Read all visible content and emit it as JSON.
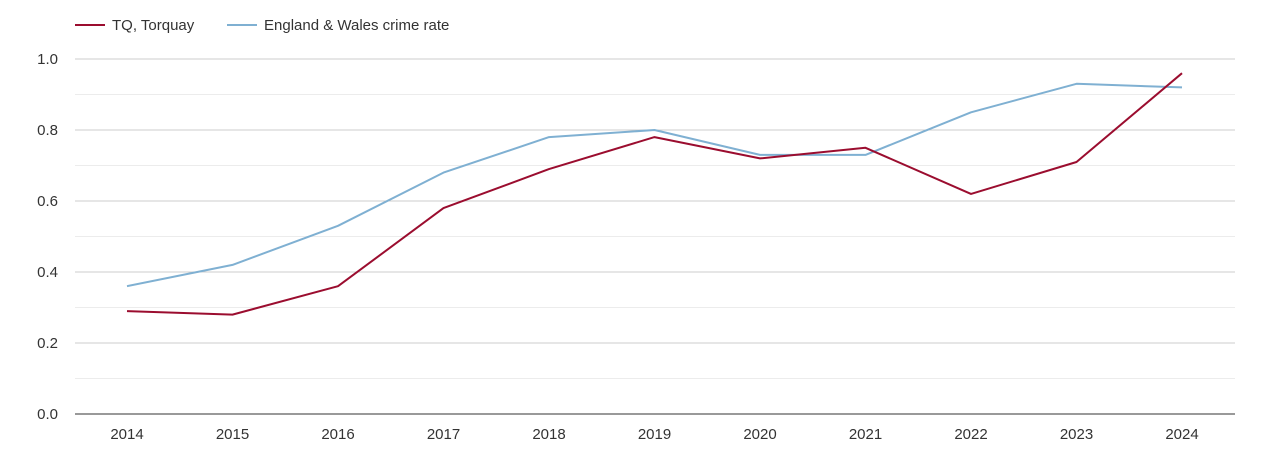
{
  "chart_data": {
    "type": "line",
    "title": "",
    "xlabel": "",
    "ylabel": "",
    "categories": [
      "2014",
      "2015",
      "2016",
      "2017",
      "2018",
      "2019",
      "2020",
      "2021",
      "2022",
      "2023",
      "2024"
    ],
    "ylim": [
      0,
      1.0
    ],
    "yticks": [
      "0.0",
      "0.2",
      "0.4",
      "0.6",
      "0.8",
      "1.0"
    ],
    "grid": true,
    "legend_position": "top-left",
    "series": [
      {
        "name": "TQ, Torquay",
        "color": "#9b0d2f",
        "values": [
          0.29,
          0.28,
          0.36,
          0.58,
          0.69,
          0.78,
          0.72,
          0.75,
          0.62,
          0.71,
          0.96
        ]
      },
      {
        "name": "England & Wales crime rate",
        "color": "#7fb0d2",
        "values": [
          0.36,
          0.42,
          0.53,
          0.68,
          0.78,
          0.8,
          0.73,
          0.73,
          0.85,
          0.93,
          0.92
        ]
      }
    ]
  }
}
